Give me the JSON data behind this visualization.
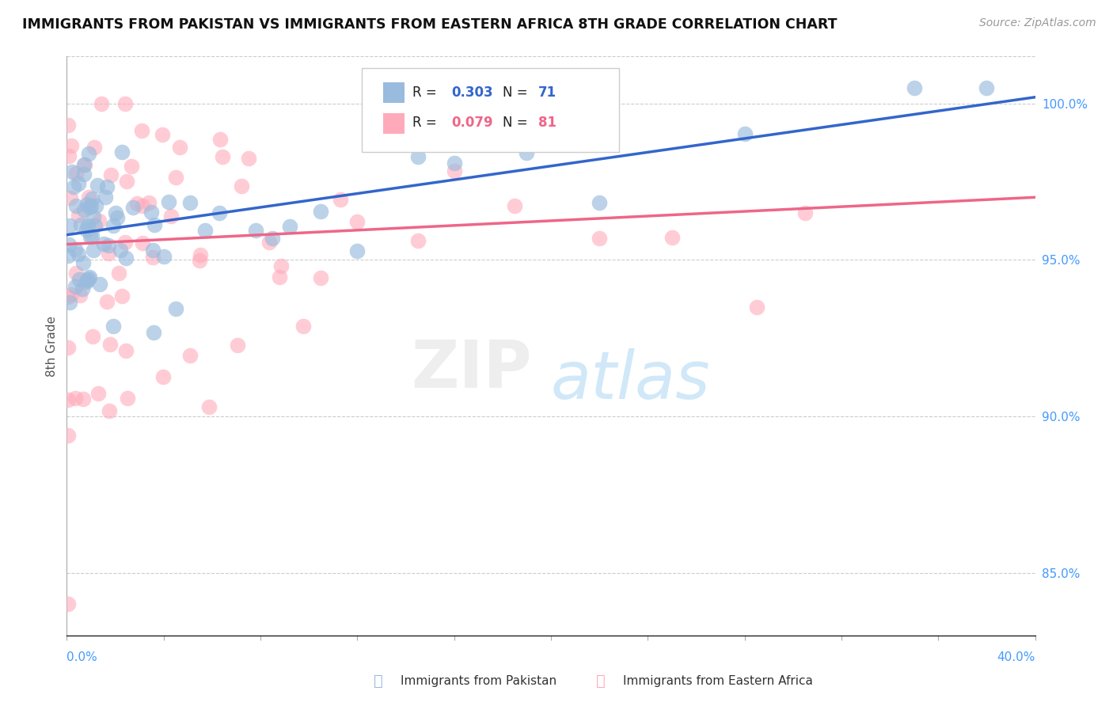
{
  "title": "IMMIGRANTS FROM PAKISTAN VS IMMIGRANTS FROM EASTERN AFRICA 8TH GRADE CORRELATION CHART",
  "source": "Source: ZipAtlas.com",
  "ylabel": "8th Grade",
  "right_yticks": [
    85.0,
    90.0,
    95.0,
    100.0
  ],
  "legend1_color": "#99bbdd",
  "legend2_color": "#ffaabb",
  "trend1_color": "#3366cc",
  "trend2_color": "#ee6688",
  "xlim": [
    0.0,
    40.0
  ],
  "ylim": [
    83.0,
    101.5
  ],
  "background_color": "#ffffff",
  "grid_color": "#cccccc"
}
